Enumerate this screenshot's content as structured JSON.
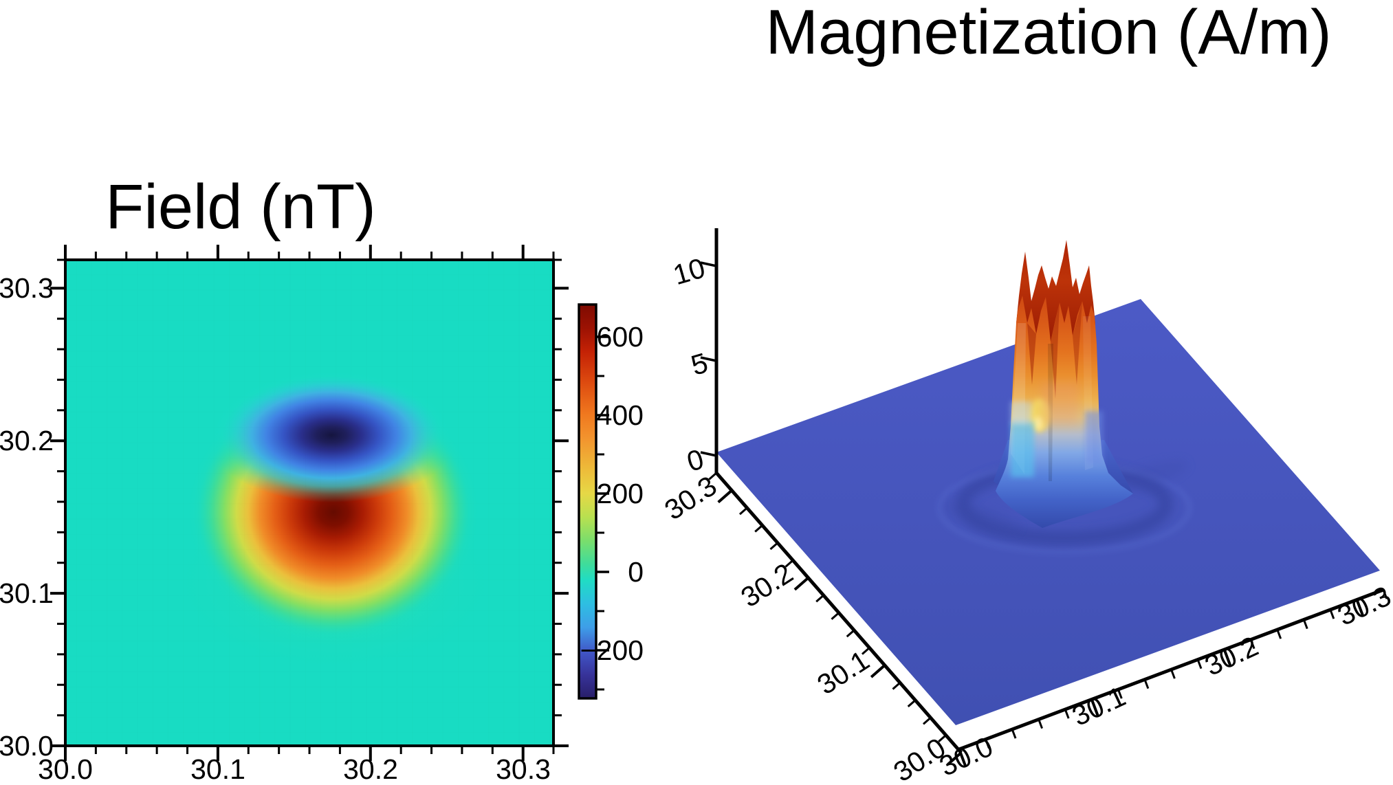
{
  "figure": {
    "background": "#FFFFFF",
    "text_color": "#000000"
  },
  "field_map": {
    "title": "Field (nT)",
    "x_labels": [
      "30.0",
      "30.1",
      "30.2",
      "30.3"
    ],
    "y_labels": [
      "30.3",
      "30.2",
      "30.1",
      "30.0"
    ],
    "background_teal": "#18DCC3"
  },
  "colorbar": {
    "labels": [
      "600",
      "400",
      "200",
      "0",
      "−200"
    ]
  },
  "mag_plot": {
    "title": "Magnetization (A/m)",
    "z_labels": [
      "10",
      "5",
      "0"
    ],
    "y_axis_labels": [
      "30.3",
      "30.2",
      "30.1",
      "30.0"
    ],
    "x_axis_labels": [
      "30.0",
      "30.1",
      "30.2",
      "30.3"
    ],
    "plane_blue": "#4554BA"
  },
  "chart_data": [
    {
      "type": "heatmap",
      "title": "Field (nT)",
      "units": "nT",
      "x_range": [
        30.0,
        30.32
      ],
      "y_range": [
        30.0,
        30.32
      ],
      "x_ticks": [
        30.0,
        30.1,
        30.2,
        30.3
      ],
      "y_ticks": [
        30.0,
        30.1,
        30.2,
        30.3
      ],
      "minor_tick_step": 0.02,
      "grid_resolution": "approx 32x32 cells",
      "background_value": 0,
      "colorbar": {
        "min": -320,
        "max": 680,
        "labeled_ticks": [
          600,
          400,
          200,
          0,
          -200
        ],
        "minor_tick_step": 100,
        "colormap_low_to_high": [
          "#281E68",
          "#37339A",
          "#4158C8",
          "#3E9EE8",
          "#2EBEE2",
          "#20DCC4",
          "#3EDC9C",
          "#7ADE6C",
          "#B8E050",
          "#E6D846",
          "#EDBC3A",
          "#F2942E",
          "#F0791F",
          "#DE4C10",
          "#C42205",
          "#7E0B02"
        ]
      },
      "anomalies": [
        {
          "name": "positive-lobe",
          "center_x": 30.176,
          "center_y": 30.154,
          "peak_value": 680,
          "extent_x": 0.13,
          "extent_y": 0.11
        },
        {
          "name": "negative-lobe",
          "center_x": 30.174,
          "center_y": 30.204,
          "peak_value": -320,
          "extent_x": 0.12,
          "extent_y": 0.05
        }
      ]
    },
    {
      "type": "3d-surface",
      "title": "Magnetization (A/m)",
      "units": "A/m",
      "x_range": [
        30.0,
        30.32
      ],
      "y_range": [
        30.0,
        30.32
      ],
      "z_ticks": [
        0,
        5,
        10
      ],
      "x_ticks": [
        30.0,
        30.1,
        30.2,
        30.3
      ],
      "y_ticks": [
        30.0,
        30.1,
        30.2,
        30.3
      ],
      "minor_tick_step": 0.02,
      "base_value": 0,
      "feature": {
        "name": "magnetized-prism",
        "x_extent": [
          30.14,
          30.21
        ],
        "y_extent": [
          30.12,
          30.19
        ],
        "plateau_value": 10,
        "noisy_peaks_to": 13,
        "surrounding_moat_below": 0
      },
      "surface_color_low": "#4554BA",
      "surface_color_high": "#C5330D",
      "legend_position": "none",
      "grid": false
    }
  ]
}
